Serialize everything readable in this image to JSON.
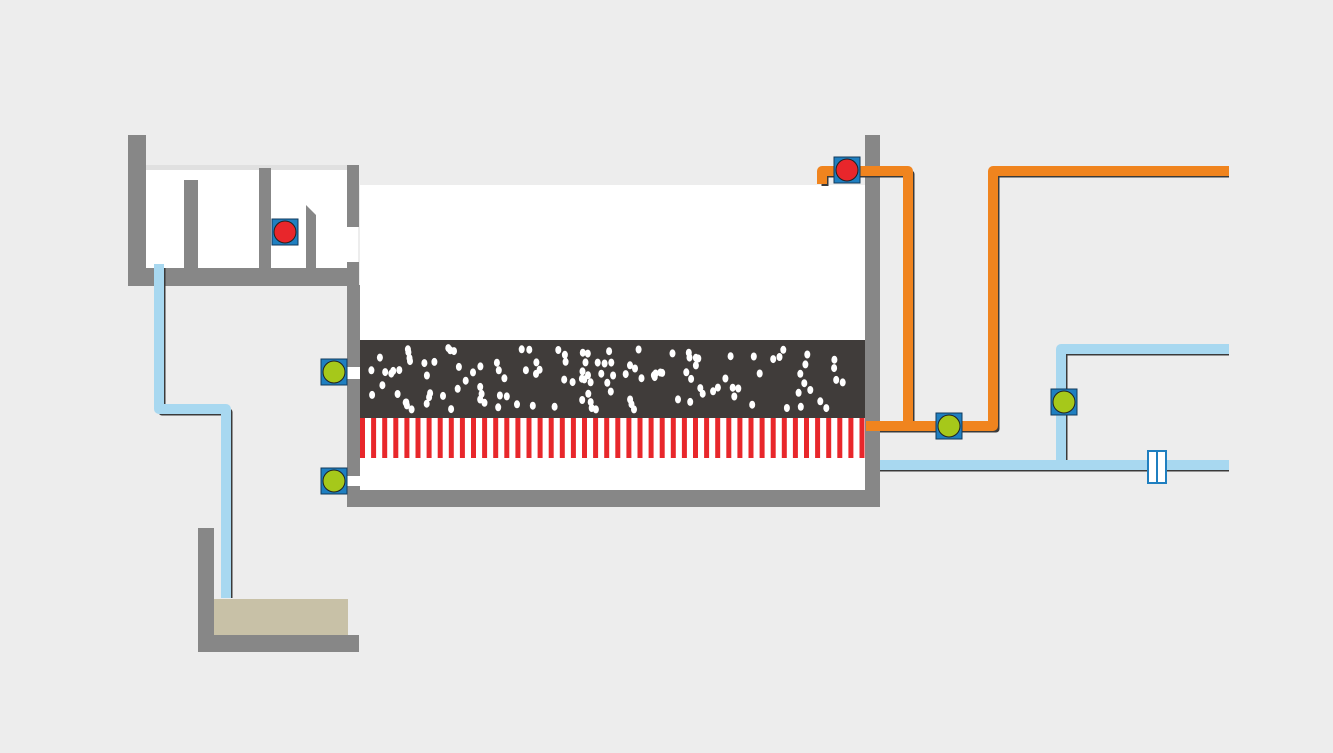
{
  "diagram": {
    "type": "filter-tank-schematic",
    "colors": {
      "background": "#ededed",
      "wall": "#878787",
      "tank_interior": "#ffffff",
      "media_layer": "#403c3a",
      "media_particles": "#ffffff",
      "underdrain_stripes": "#e8272b",
      "sludge": "#c8c1a7",
      "water_pipe": "#a8d8f0",
      "backwash_pipe": "#f0841e",
      "pipe_shadow": "#3a3a3a",
      "valve_open": "#a6c81a",
      "valve_closed": "#e8262b",
      "valve_housing": "#1f7fc0"
    },
    "components": [
      {
        "id": "inlet-channel",
        "kind": "channel"
      },
      {
        "id": "filter-tank",
        "kind": "tank"
      },
      {
        "id": "filter-media",
        "kind": "media-bed"
      },
      {
        "id": "underdrain",
        "kind": "underdrain"
      },
      {
        "id": "sump-pit",
        "kind": "sump"
      },
      {
        "id": "outlet-meter",
        "kind": "flow-meter"
      }
    ],
    "valves": [
      {
        "id": "valve-inlet-channel",
        "state": "closed"
      },
      {
        "id": "valve-backwash-top",
        "state": "closed"
      },
      {
        "id": "valve-tank-upper",
        "state": "open"
      },
      {
        "id": "valve-tank-lower",
        "state": "open"
      },
      {
        "id": "valve-backwash-bottom",
        "state": "open"
      },
      {
        "id": "valve-filtrate-branch",
        "state": "open"
      }
    ]
  }
}
